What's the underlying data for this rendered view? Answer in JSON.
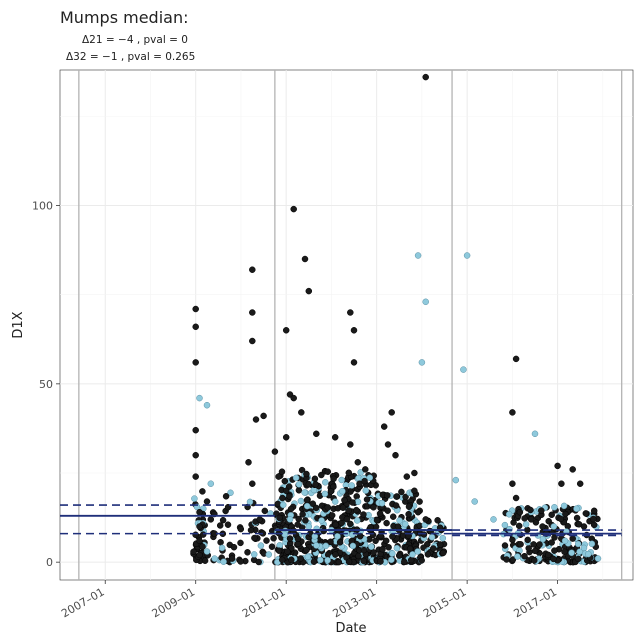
{
  "title": "Mumps median:",
  "subtitle_lines": {
    "line1": "Δ21 = −4 , pval = 0",
    "line2": "Δ32 = −1 , pval = 0.265"
  },
  "chart_data": {
    "type": "scatter",
    "title": "Mumps median:",
    "xlabel": "Date",
    "ylabel": "D1X",
    "x_ticks": [
      "2007-01",
      "2009-01",
      "2011-01",
      "2013-01",
      "2015-01",
      "2017-01"
    ],
    "y_ticks": [
      0,
      50,
      100
    ],
    "xlim": [
      "2006-01",
      "2018-09"
    ],
    "ylim": [
      -5,
      138
    ],
    "grid": true,
    "period_boundaries": [
      "2006-06",
      "2010-10",
      "2014-09",
      "2018-06"
    ],
    "medians": [
      {
        "from": "2006-01",
        "to": "2010-10",
        "median": 13,
        "lower": 8,
        "upper": 16
      },
      {
        "from": "2010-10",
        "to": "2014-09",
        "median": 9,
        "lower": 8,
        "upper": 9
      },
      {
        "from": "2014-09",
        "to": "2018-06",
        "median": 8,
        "lower": 7.5,
        "upper": 9
      }
    ],
    "series": [
      {
        "color": "#1a1a1a",
        "points": [
          [
            "2009-01",
            71
          ],
          [
            "2009-01",
            66
          ],
          [
            "2009-01",
            56
          ],
          [
            "2009-01",
            37
          ],
          [
            "2009-01",
            30
          ],
          [
            "2009-01",
            24
          ],
          [
            "2009-02",
            14
          ],
          [
            "2009-02",
            10
          ],
          [
            "2009-02",
            6
          ],
          [
            "2009-02",
            2
          ],
          [
            "2009-04",
            17
          ],
          [
            "2009-05",
            12
          ],
          [
            "2009-06",
            8
          ],
          [
            "2010-03",
            28
          ],
          [
            "2010-04",
            22
          ],
          [
            "2010-06",
            12
          ],
          [
            "2010-10",
            31
          ],
          [
            "2010-11",
            24
          ],
          [
            "2010-12",
            18
          ],
          [
            "2011-01",
            35
          ],
          [
            "2011-01",
            20
          ],
          [
            "2010-04",
            82
          ],
          [
            "2010-04",
            70
          ],
          [
            "2010-04",
            62
          ],
          [
            "2011-01",
            65
          ],
          [
            "2011-03",
            99
          ],
          [
            "2011-06",
            85
          ],
          [
            "2011-07",
            76
          ],
          [
            "2011-02",
            47
          ],
          [
            "2011-03",
            46
          ],
          [
            "2011-05",
            42
          ],
          [
            "2010-07",
            41
          ],
          [
            "2010-05",
            40
          ],
          [
            "2011-09",
            36
          ],
          [
            "2012-02",
            35
          ],
          [
            "2012-06",
            33
          ],
          [
            "2012-08",
            28
          ],
          [
            "2012-10",
            26
          ],
          [
            "2012-06",
            70
          ],
          [
            "2012-07",
            65
          ],
          [
            "2012-07",
            56
          ],
          [
            "2013-05",
            42
          ],
          [
            "2013-03",
            38
          ],
          [
            "2013-04",
            33
          ],
          [
            "2013-06",
            30
          ],
          [
            "2013-09",
            24
          ],
          [
            "2013-11",
            20
          ],
          [
            "2013-12",
            14
          ],
          [
            "2014-02",
            12
          ],
          [
            "2014-02",
            136
          ],
          [
            "2013-11",
            25
          ],
          [
            "2016-02",
            57
          ],
          [
            "2016-01",
            42
          ],
          [
            "2016-01",
            22
          ],
          [
            "2016-02",
            18
          ],
          [
            "2016-03",
            14
          ],
          [
            "2016-06",
            12
          ],
          [
            "2016-09",
            10
          ],
          [
            "2016-10",
            8
          ],
          [
            "2017-01",
            27
          ],
          [
            "2017-02",
            22
          ],
          [
            "2017-05",
            26
          ],
          [
            "2017-07",
            22
          ],
          [
            "2017-08",
            10
          ]
        ]
      },
      {
        "color": "#8ec9dc",
        "points": [
          [
            "2009-02",
            46
          ],
          [
            "2009-04",
            44
          ],
          [
            "2009-05",
            22
          ],
          [
            "2009-04",
            3
          ],
          [
            "2009-06",
            1
          ],
          [
            "2009-08",
            4
          ],
          [
            "2011-02",
            12
          ],
          [
            "2011-07",
            10
          ],
          [
            "2012-01",
            9
          ],
          [
            "2012-05",
            8
          ],
          [
            "2013-12",
            86
          ],
          [
            "2014-01",
            56
          ],
          [
            "2014-02",
            73
          ],
          [
            "2014-10",
            23
          ],
          [
            "2015-01",
            86
          ],
          [
            "2014-12",
            54
          ],
          [
            "2016-07",
            36
          ],
          [
            "2015-03",
            17
          ],
          [
            "2015-08",
            12
          ],
          [
            "2016-12",
            10
          ],
          [
            "2017-03",
            6
          ],
          [
            "2017-06",
            15
          ],
          [
            "2017-08",
            4
          ]
        ]
      }
    ]
  }
}
